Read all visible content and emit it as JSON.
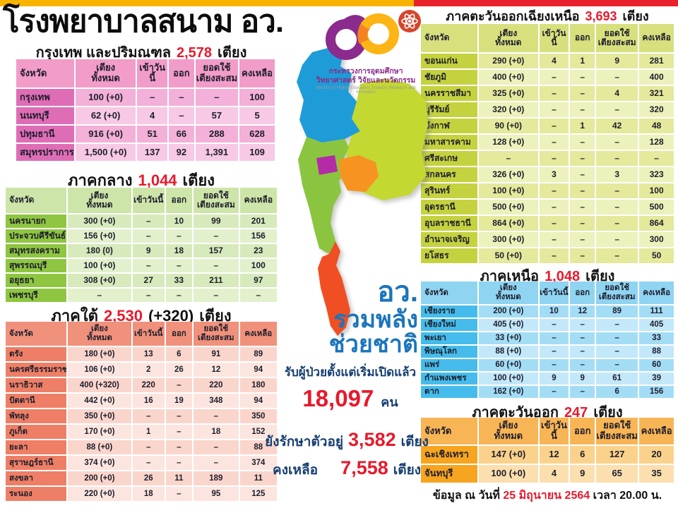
{
  "colors": {
    "accent_red": "#e8192c",
    "bar_yellow": "#f8b301",
    "bar_red": "#e8212d",
    "slogan_blue": "#1b75bc",
    "stat_navy": "#173f72",
    "text_dark": "#1d1d2b"
  },
  "header": {
    "title": "โรงพยาบาลสนาม อว."
  },
  "logo": {
    "line1": "กระทรวงการอุดมศึกษา",
    "line2": "วิทยาศาสตร์ วิจัยและนวัตกรรม",
    "line3": "Ministry of Higher Education, Science, Research and Innovation"
  },
  "map": {
    "colors": {
      "north": "#1e9cd8",
      "northeast": "#c3d831",
      "central": "#8bc540",
      "bangkok": "#b32ba5",
      "east": "#f79421",
      "south": "#f04f23"
    }
  },
  "center": {
    "slogan1": "อว.",
    "slogan2": "รวมพลัง",
    "slogan3": "ช่วยชาติ",
    "admitted_label": "รับผู้ป่วยตั้งแต่เริ่มเปิดแล้ว",
    "admitted_value": "18,097",
    "admitted_unit": "คน",
    "incare_label": "ยังรักษาตัวอยู่",
    "incare_value": "3,582",
    "incare_unit": "เตียง",
    "remaining_label": "คงเหลือ",
    "remaining_value": "7,558",
    "remaining_unit": "เตียง"
  },
  "footer": {
    "prefix": "ข้อมูล ณ วันที่",
    "date": "25 มิถุนายน 2564",
    "suffix": "เวลา  20.00 น."
  },
  "columns": [
    "จังหวัด",
    "เตียง\nทั้งหมด",
    "เข้าวันนี้",
    "ออก",
    "ยอดใช้\nเตียงสะสม",
    "คงเหลือ"
  ],
  "tables": {
    "bangkok": {
      "title": {
        "prefix": "กรุงเทพ และปริมณฑล",
        "total": "2,578",
        "plus": "",
        "unit": "เตียง"
      },
      "theme": {
        "header": "#f19cc9",
        "first_col": "#df6db6",
        "row_a": "#f3b0d8",
        "row_b": "#f7c9e5"
      },
      "rows": [
        [
          "กรุงเทพ",
          "100 (+0)",
          "–",
          "–",
          "–",
          "100"
        ],
        [
          "นนทบุรี",
          "62 (+0)",
          "4",
          "–",
          "57",
          "5"
        ],
        [
          "ปทุมธานี",
          "916 (+0)",
          "51",
          "66",
          "288",
          "628"
        ],
        [
          "สมุทรปราการ",
          "1,500 (+0)",
          "137",
          "92",
          "1,391",
          "109"
        ]
      ]
    },
    "central": {
      "title": {
        "prefix": "ภาคกลาง",
        "total": "1,044",
        "plus": "",
        "unit": "เตียง"
      },
      "theme": {
        "header": "#cde5a8",
        "first_col": "#8ec641",
        "row_a": "#d7eabc",
        "row_b": "#e2f0cc"
      },
      "rows": [
        [
          "นครนายก",
          "300 (+0)",
          "–",
          "10",
          "99",
          "201"
        ],
        [
          "ประจวบคีรีขันธ์",
          "156 (+0)",
          "–",
          "–",
          "–",
          "156"
        ],
        [
          "สมุทรสงคราม",
          "180 (0)",
          "9",
          "18",
          "157",
          "23"
        ],
        [
          "สุพรรณบุรี",
          "100 (+0)",
          "–",
          "–",
          "–",
          "100"
        ],
        [
          "อยุธยา",
          "308 (+0)",
          "27",
          "33",
          "211",
          "97"
        ],
        [
          "เพชรบุรี",
          "–",
          "–",
          "–",
          "–",
          "–"
        ]
      ]
    },
    "south": {
      "title": {
        "prefix": "ภาคใต้",
        "total": "2,530",
        "plus": "(+320)",
        "unit": "เตียง"
      },
      "theme": {
        "header": "#f0917c",
        "first_col": "#ee7f66",
        "row_a": "#fad5cc",
        "row_b": "#fce5df"
      },
      "rows": [
        [
          "ตรัง",
          "180 (+0)",
          "13",
          "6",
          "91",
          "89"
        ],
        [
          "นครศรีธรรมราช",
          "106 (+0)",
          "2",
          "26",
          "12",
          "94"
        ],
        [
          "นราธิวาส",
          "400 (+320)",
          "220",
          "–",
          "220",
          "180"
        ],
        [
          "ปัตตานี",
          "442 (+0)",
          "16",
          "19",
          "348",
          "94"
        ],
        [
          "พัทลุง",
          "350 (+0)",
          "–",
          "–",
          "–",
          "350"
        ],
        [
          "ภูเก็ต",
          "170 (+0)",
          "1",
          "–",
          "18",
          "152"
        ],
        [
          "ยะลา",
          "88 (+0)",
          "–",
          "–",
          "–",
          "88"
        ],
        [
          "สุราษฎร์ธานี",
          "374 (+0)",
          "–",
          "–",
          "–",
          "374"
        ],
        [
          "สงขลา",
          "200 (+0)",
          "26",
          "11",
          "189",
          "11"
        ],
        [
          "ระนอง",
          "220 (+0)",
          "18",
          "–",
          "95",
          "125"
        ]
      ]
    },
    "northeast": {
      "title": {
        "prefix": "ภาคตะวันออกเฉียงเหนือ",
        "total": "3,693",
        "plus": "",
        "unit": "เตียง"
      },
      "theme": {
        "header": "#d8e07e",
        "first_col": "#c5d23f",
        "row_a": "#e4e99c",
        "row_b": "#edf1bb"
      },
      "rows": [
        [
          "ขอนแก่น",
          "290 (+0)",
          "4",
          "1",
          "9",
          "281"
        ],
        [
          "ชัยภูมิ",
          "400 (+0)",
          "–",
          "–",
          "–",
          "400"
        ],
        [
          "นครราชสีมา",
          "325 (+0)",
          "–",
          "–",
          "4",
          "321"
        ],
        [
          "บุรีรัมย์",
          "320 (+0)",
          "–",
          "–",
          "–",
          "320"
        ],
        [
          "บึงกาฬ",
          "90 (+0)",
          "–",
          "1",
          "42",
          "48"
        ],
        [
          "มหาสารคาม",
          "128 (+0)",
          "–",
          "–",
          "–",
          "128"
        ],
        [
          "ศรีสะเกษ",
          "–",
          "–",
          "–",
          "–",
          "–"
        ],
        [
          "สกลนคร",
          "326 (+0)",
          "3",
          "–",
          "3",
          "323"
        ],
        [
          "สุรินทร์",
          "100 (+0)",
          "–",
          "–",
          "–",
          "100"
        ],
        [
          "อุดรธานี",
          "500 (+0)",
          "–",
          "–",
          "–",
          "500"
        ],
        [
          "อุบลราชธานี",
          "864 (+0)",
          "–",
          "–",
          "–",
          "864"
        ],
        [
          "อำนาจเจริญ",
          "300 (+0)",
          "–",
          "–",
          "–",
          "300"
        ],
        [
          "ยโสธร",
          "50 (+0)",
          "–",
          "–",
          "–",
          "50"
        ]
      ]
    },
    "north": {
      "title": {
        "prefix": "ภาคเหนือ",
        "total": "1,048",
        "plus": "",
        "unit": "เตียง"
      },
      "theme": {
        "header": "#8fd4f1",
        "first_col": "#45bceb",
        "row_a": "#a3ddf5",
        "row_b": "#c2e8f9"
      },
      "rows": [
        [
          "เชียงราย",
          "200 (+0)",
          "10",
          "12",
          "89",
          "111"
        ],
        [
          "เชียงใหม่",
          "405 (+0)",
          "–",
          "–",
          "–",
          "405"
        ],
        [
          "พะเยา",
          "33 (+0)",
          "–",
          "–",
          "–",
          "33"
        ],
        [
          "พิษณุโลก",
          "88 (+0)",
          "–",
          "–",
          "–",
          "88"
        ],
        [
          "แพร่",
          "60 (+0)",
          "–",
          "–",
          "–",
          "60"
        ],
        [
          "กำแพงเพชร",
          "100 (+0)",
          "9",
          "9",
          "61",
          "39"
        ],
        [
          "ตาก",
          "162 (+0)",
          "–",
          "–",
          "6",
          "156"
        ]
      ]
    },
    "east": {
      "title": {
        "prefix": "ภาคตะวันออก",
        "total": "247",
        "plus": "",
        "unit": "เตียง"
      },
      "theme": {
        "header": "#f8b556",
        "first_col": "#f7a420",
        "row_a": "#fbd28c",
        "row_b": "#fcdfae"
      },
      "rows": [
        [
          "ฉะเชิงเทรา",
          "147 (+0)",
          "12",
          "6",
          "127",
          "20"
        ],
        [
          "จันทบุรี",
          "100 (+0)",
          "4",
          "9",
          "65",
          "35"
        ]
      ]
    }
  }
}
